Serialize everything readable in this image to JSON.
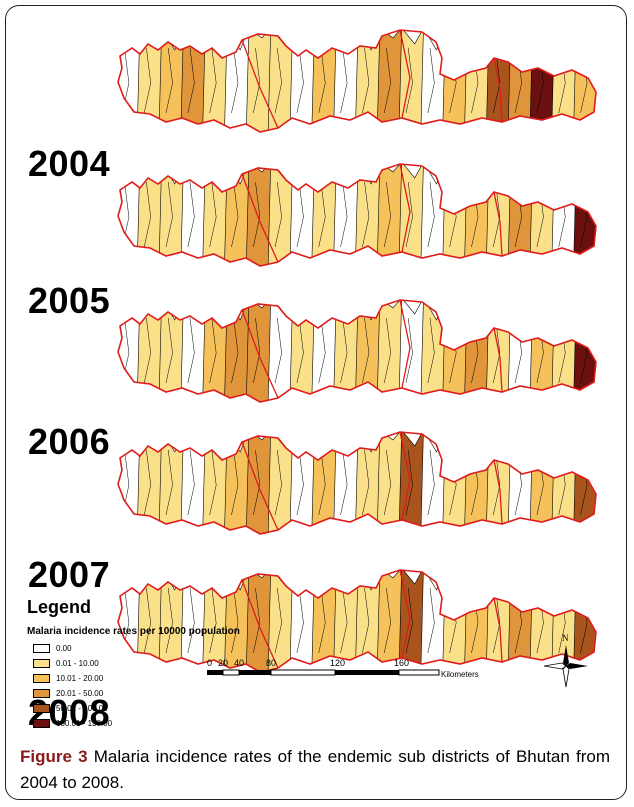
{
  "years": [
    "2004",
    "2005",
    "2006",
    "2007",
    "2008"
  ],
  "legend": {
    "title": "Legend",
    "subtitle": "Malaria incidence rates per 10000 population",
    "classes": [
      {
        "label": "0.00",
        "color": "#ffffff"
      },
      {
        "label": "0.01 - 10.00",
        "color": "#fbe08a"
      },
      {
        "label": "10.01 - 20.00",
        "color": "#f5c15a"
      },
      {
        "label": "20.01 - 50.00",
        "color": "#e0953a"
      },
      {
        "label": "50.01 - 100.00",
        "color": "#a8541c"
      },
      {
        "label": "100.01 - 130.00",
        "color": "#6b0f0f"
      }
    ]
  },
  "scale": {
    "ticks": [
      "0",
      "20",
      "40",
      "80",
      "120",
      "160"
    ],
    "unit": "Kilometers"
  },
  "north_label": "N",
  "caption": {
    "figure": "Figure 3",
    "text": "Malaria incidence rates of the endemic sub districts of Bhutan from 2004 to 2008."
  },
  "colors": {
    "boundary": "#e01b1b",
    "subdistrict_line": "#000000"
  }
}
